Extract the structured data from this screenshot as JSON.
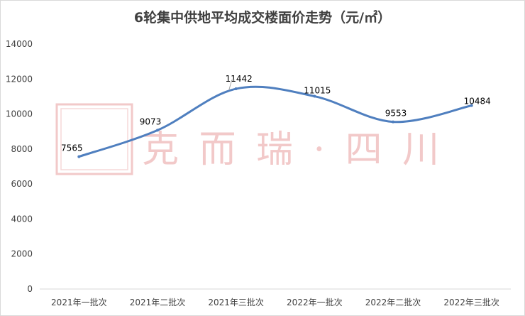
{
  "chart_data": {
    "type": "line",
    "title": "6轮集中供地平均成交楼面价走势（元/㎡）",
    "categories": [
      "2021年一批次",
      "2021年二批次",
      "2021年三批次",
      "2022年一批次",
      "2022年二批次",
      "2022年三批次"
    ],
    "series": [
      {
        "values": [
          7565,
          9073,
          11442,
          11015,
          9553,
          10484
        ]
      }
    ],
    "ylim": [
      0,
      14000
    ],
    "yticks": [
      0,
      2000,
      4000,
      6000,
      8000,
      10000,
      12000,
      14000
    ],
    "smooth": true,
    "grid": false,
    "legend": "none",
    "line_color": "#4f7fbf"
  },
  "watermark": {
    "text": "克 而 瑞 · 四 川",
    "color": "#f2c9c9"
  }
}
